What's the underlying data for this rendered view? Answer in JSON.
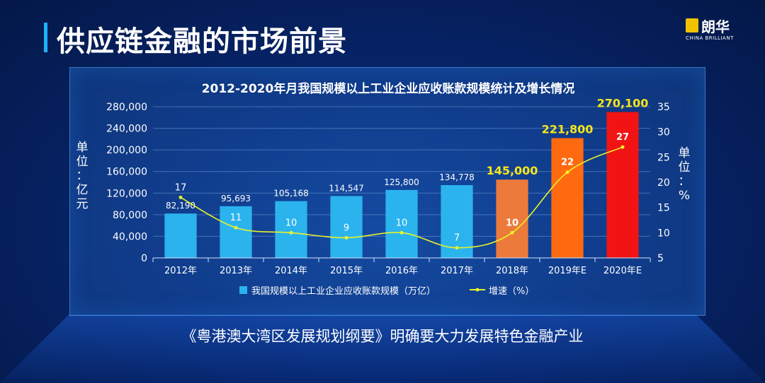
{
  "page": {
    "title": "供应链金融的市场前景",
    "subtitle": "《粤港澳大湾区发展规划纲要》明确要大力发展特色金融产业"
  },
  "logo": {
    "name": "朗华",
    "tagline": "CHINA BRILLIANT",
    "icon": "brand-logo-icon",
    "color": "#f2c200"
  },
  "chart_data": {
    "type": "bar",
    "title": "2012-2020年月我国规模以上工业企业应收账款规模统计及增长情况",
    "categories": [
      "2012年",
      "2013年",
      "2014年",
      "2015年",
      "2016年",
      "2017年",
      "2018年",
      "2019年E",
      "2020年E"
    ],
    "series": [
      {
        "name": "我国规模以上工业企业应收账款规模（万亿）",
        "type": "bar",
        "axis": "left",
        "values": [
          82190,
          95693,
          105168,
          114547,
          125800,
          134778,
          145000,
          221800,
          270100
        ],
        "labels": [
          "82,190",
          "95,693",
          "105,168",
          "114,547",
          "125,800",
          "134,778",
          "145,000",
          "221,800",
          "270,100"
        ],
        "colors": [
          "#2bb3ee",
          "#2bb3ee",
          "#2bb3ee",
          "#2bb3ee",
          "#2bb3ee",
          "#2bb3ee",
          "#ec7a3a",
          "#ff6a10",
          "#f21414"
        ]
      },
      {
        "name": "增速（%）",
        "type": "line",
        "axis": "right",
        "values": [
          17,
          11,
          10,
          9,
          10,
          7,
          10,
          22,
          27
        ],
        "labels": [
          "17",
          "11",
          "10",
          "9",
          "10",
          "7",
          "10",
          "22",
          "27"
        ],
        "color": "#e8f22a"
      }
    ],
    "y_left": {
      "label": "单位：亿元",
      "ylim": [
        0,
        280000
      ],
      "ticks": [
        "0",
        "40,000",
        "80,000",
        "120,000",
        "160,000",
        "200,000",
        "240,000",
        "280,000"
      ]
    },
    "y_right": {
      "label": "单位：%",
      "ylim": [
        5,
        35
      ],
      "ticks": [
        "5",
        "10",
        "15",
        "20",
        "25",
        "30",
        "35"
      ]
    },
    "grid": true,
    "legend": "bottom"
  }
}
